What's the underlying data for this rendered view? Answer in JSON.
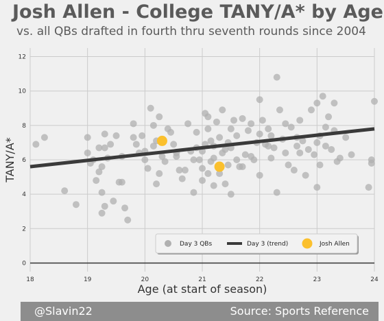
{
  "chart_data": {
    "type": "scatter",
    "title": "Josh Allen - College TANY/A* by Age",
    "subtitle": "vs. all QBs drafted in fourth thru seventh rounds since 2004",
    "xlabel": "Age (at start of season)",
    "ylabel": "TANY/A*",
    "xlim": [
      18,
      24
    ],
    "ylim": [
      -0.5,
      12.5
    ],
    "xticks": [
      "18",
      "19",
      "20",
      "21",
      "22",
      "23",
      "24"
    ],
    "yticks": [
      "0",
      "2",
      "4",
      "6",
      "8",
      "10",
      "12"
    ],
    "grid": true,
    "legend_position": "bottom-right",
    "series": [
      {
        "name": "Day 3 QBs",
        "kind": "scatter",
        "color": "#b0b0b0",
        "points": [
          [
            18.1,
            6.9
          ],
          [
            18.25,
            7.3
          ],
          [
            18.6,
            4.2
          ],
          [
            18.8,
            3.4
          ],
          [
            19.0,
            7.3
          ],
          [
            19.0,
            6.4
          ],
          [
            19.05,
            5.8
          ],
          [
            19.1,
            6.0
          ],
          [
            19.15,
            4.8
          ],
          [
            19.2,
            6.7
          ],
          [
            19.2,
            5.3
          ],
          [
            19.25,
            5.6
          ],
          [
            19.3,
            7.5
          ],
          [
            19.3,
            3.3
          ],
          [
            19.35,
            6.1
          ],
          [
            19.4,
            6.9
          ],
          [
            19.45,
            3.6
          ],
          [
            19.5,
            7.4
          ],
          [
            19.55,
            4.7
          ],
          [
            19.6,
            4.7
          ],
          [
            19.6,
            6.2
          ],
          [
            19.65,
            3.2
          ],
          [
            19.7,
            2.5
          ],
          [
            19.25,
            2.9
          ],
          [
            19.25,
            4.1
          ],
          [
            19.3,
            6.7
          ],
          [
            19.8,
            7.3
          ],
          [
            19.8,
            8.1
          ],
          [
            19.85,
            6.9
          ],
          [
            19.9,
            6.4
          ],
          [
            19.95,
            7.4
          ],
          [
            20.0,
            6.5
          ],
          [
            20.0,
            6.0
          ],
          [
            20.05,
            5.5
          ],
          [
            20.1,
            9.0
          ],
          [
            20.15,
            8.0
          ],
          [
            20.2,
            4.6
          ],
          [
            20.2,
            7.1
          ],
          [
            20.25,
            5.2
          ],
          [
            20.25,
            8.5
          ],
          [
            20.3,
            6.2
          ],
          [
            20.35,
            5.9
          ],
          [
            20.4,
            7.8
          ],
          [
            20.45,
            7.6
          ],
          [
            20.5,
            6.9
          ],
          [
            20.55,
            6.4
          ],
          [
            20.6,
            5.4
          ],
          [
            20.65,
            4.9
          ],
          [
            20.7,
            5.4
          ],
          [
            20.75,
            8.1
          ],
          [
            20.8,
            6.5
          ],
          [
            20.85,
            4.1
          ],
          [
            20.85,
            6.0
          ],
          [
            20.9,
            7.6
          ],
          [
            20.95,
            6.0
          ],
          [
            21.0,
            6.5
          ],
          [
            21.0,
            5.5
          ],
          [
            21.0,
            4.8
          ],
          [
            21.05,
            6.9
          ],
          [
            21.05,
            8.7
          ],
          [
            21.1,
            8.5
          ],
          [
            21.1,
            7.8
          ],
          [
            21.15,
            7.1
          ],
          [
            21.15,
            5.9
          ],
          [
            21.2,
            6.1
          ],
          [
            21.2,
            4.5
          ],
          [
            21.25,
            8.2
          ],
          [
            21.3,
            7.3
          ],
          [
            21.3,
            5.2
          ],
          [
            21.35,
            8.9
          ],
          [
            21.4,
            6.6
          ],
          [
            21.4,
            4.6
          ],
          [
            21.45,
            7.0
          ],
          [
            21.5,
            7.8
          ],
          [
            21.5,
            6.7
          ],
          [
            21.5,
            4.0
          ],
          [
            21.55,
            8.3
          ],
          [
            21.6,
            6.0
          ],
          [
            21.6,
            7.4
          ],
          [
            21.65,
            5.6
          ],
          [
            21.7,
            8.4
          ],
          [
            21.75,
            6.3
          ],
          [
            21.8,
            7.7
          ],
          [
            21.85,
            8.1
          ],
          [
            21.9,
            6.0
          ],
          [
            21.95,
            7.0
          ],
          [
            22.0,
            9.5
          ],
          [
            22.0,
            7.5
          ],
          [
            22.0,
            5.1
          ],
          [
            22.05,
            8.3
          ],
          [
            22.1,
            6.9
          ],
          [
            22.15,
            7.8
          ],
          [
            22.2,
            6.1
          ],
          [
            22.25,
            6.7
          ],
          [
            22.3,
            10.8
          ],
          [
            22.3,
            4.1
          ],
          [
            22.35,
            8.9
          ],
          [
            22.4,
            7.2
          ],
          [
            22.45,
            6.4
          ],
          [
            22.5,
            5.7
          ],
          [
            22.55,
            7.9
          ],
          [
            22.6,
            5.4
          ],
          [
            22.65,
            6.8
          ],
          [
            22.7,
            8.3
          ],
          [
            22.75,
            7.1
          ],
          [
            22.8,
            5.1
          ],
          [
            22.85,
            6.6
          ],
          [
            22.9,
            8.9
          ],
          [
            22.95,
            6.3
          ],
          [
            23.0,
            9.3
          ],
          [
            23.0,
            7.0
          ],
          [
            23.0,
            4.4
          ],
          [
            23.05,
            5.7
          ],
          [
            23.1,
            9.7
          ],
          [
            23.15,
            7.9
          ],
          [
            23.2,
            8.5
          ],
          [
            23.25,
            6.6
          ],
          [
            23.3,
            9.3
          ],
          [
            23.35,
            5.9
          ],
          [
            23.4,
            6.1
          ],
          [
            23.5,
            7.3
          ],
          [
            23.6,
            6.3
          ],
          [
            23.9,
            4.4
          ],
          [
            23.95,
            6.0
          ],
          [
            24.0,
            9.4
          ],
          [
            23.95,
            5.8
          ],
          [
            20.55,
            6.2
          ],
          [
            21.2,
            6.8
          ],
          [
            21.85,
            6.2
          ],
          [
            22.2,
            7.4
          ],
          [
            22.65,
            7.3
          ],
          [
            23.15,
            6.8
          ],
          [
            23.3,
            7.7
          ],
          [
            20.15,
            6.8
          ],
          [
            21.7,
            5.6
          ],
          [
            21.35,
            6.4
          ],
          [
            22.45,
            8.1
          ],
          [
            21.1,
            5.2
          ],
          [
            22.15,
            6.8
          ],
          [
            23.05,
            7.4
          ],
          [
            20.9,
            6.7
          ],
          [
            21.45,
            5.7
          ],
          [
            22.7,
            6.4
          ]
        ]
      },
      {
        "name": "Day 3 (trend)",
        "kind": "line",
        "color": "#3a3a3a",
        "x": [
          18.0,
          24.0
        ],
        "y": [
          5.6,
          7.8
        ]
      },
      {
        "name": "Josh Allen",
        "kind": "scatter",
        "color": "#fbc02d",
        "points": [
          [
            20.3,
            7.1
          ],
          [
            21.3,
            5.6
          ]
        ]
      }
    ]
  },
  "footer": {
    "left": "@Slavin22",
    "right": "Source: Sports Reference"
  }
}
